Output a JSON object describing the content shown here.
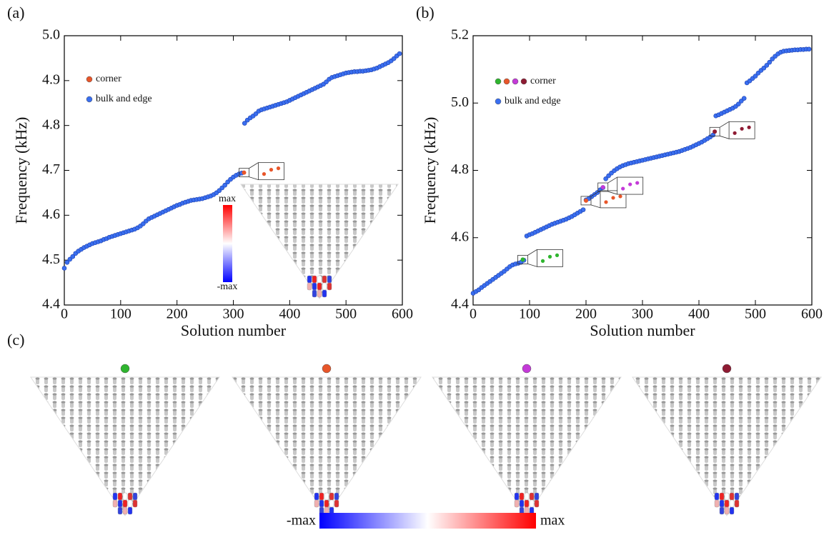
{
  "chart_data": [
    {
      "type": "scatter",
      "panel_label": "(a)",
      "xlabel": "Solution number",
      "ylabel": "Frequency (kHz)",
      "xlim": [
        0,
        600
      ],
      "xticks": [
        0,
        100,
        200,
        300,
        400,
        500,
        600
      ],
      "ylim": [
        4.4,
        5.0
      ],
      "yticks": [
        4.4,
        4.5,
        4.6,
        4.7,
        4.8,
        4.9,
        {
          "value": 5.0,
          "label": "5.0"
        }
      ],
      "colorbar": {
        "max_label": "max",
        "min_label": "-max"
      },
      "series": [
        {
          "name": "bulk and edge",
          "color": "#3a6ff0",
          "x": [
            0,
            5,
            10,
            15,
            20,
            25,
            30,
            35,
            40,
            45,
            50,
            55,
            60,
            65,
            70,
            75,
            80,
            85,
            90,
            95,
            100,
            105,
            110,
            115,
            120,
            125,
            130,
            135,
            140,
            145,
            150,
            155,
            160,
            165,
            170,
            175,
            180,
            185,
            190,
            195,
            200,
            205,
            210,
            215,
            220,
            225,
            230,
            235,
            240,
            245,
            250,
            255,
            260,
            265,
            270,
            275,
            280,
            285,
            290,
            295,
            300,
            305,
            310,
            315,
            320,
            325,
            330,
            335,
            340,
            345,
            350,
            355,
            360,
            365,
            370,
            375,
            380,
            385,
            390,
            395,
            400,
            405,
            410,
            415,
            420,
            425,
            430,
            435,
            440,
            445,
            450,
            455,
            460,
            465,
            470,
            475,
            480,
            485,
            490,
            495,
            500,
            505,
            510,
            515,
            520,
            525,
            530,
            535,
            540,
            545,
            550,
            555,
            560,
            565,
            570,
            575,
            580,
            585,
            590,
            595
          ],
          "values": [
            4.482,
            4.495,
            4.502,
            4.508,
            4.515,
            4.52,
            4.524,
            4.528,
            4.531,
            4.534,
            4.537,
            4.539,
            4.541,
            4.543,
            4.546,
            4.548,
            4.551,
            4.553,
            4.555,
            4.557,
            4.559,
            4.561,
            4.563,
            4.565,
            4.567,
            4.569,
            4.572,
            4.576,
            4.581,
            4.587,
            4.592,
            4.595,
            4.598,
            4.601,
            4.604,
            4.607,
            4.61,
            4.613,
            4.616,
            4.619,
            4.622,
            4.624,
            4.627,
            4.629,
            4.631,
            4.633,
            4.634,
            4.635,
            4.636,
            4.637,
            4.639,
            4.641,
            4.643,
            4.646,
            4.65,
            4.655,
            4.661,
            4.667,
            4.674,
            4.68,
            4.685,
            4.689,
            4.692,
            4.694,
            4.805,
            4.812,
            4.817,
            4.821,
            4.826,
            4.832,
            4.835,
            4.837,
            4.839,
            4.841,
            4.843,
            4.845,
            4.847,
            4.849,
            4.851,
            4.853,
            4.856,
            4.859,
            4.862,
            4.865,
            4.868,
            4.871,
            4.874,
            4.877,
            4.88,
            4.883,
            4.886,
            4.889,
            4.892,
            4.897,
            4.903,
            4.907,
            4.909,
            4.911,
            4.913,
            4.915,
            4.917,
            4.918,
            4.919,
            4.92,
            4.92,
            4.921,
            4.921,
            4.922,
            4.923,
            4.924,
            4.926,
            4.928,
            4.931,
            4.934,
            4.937,
            4.94,
            4.944,
            4.949,
            4.955,
            4.96
          ]
        },
        {
          "name": "corner",
          "colors": [
            "#e8562a"
          ],
          "x": [
            319
          ],
          "values": [
            4.695
          ]
        }
      ]
    },
    {
      "type": "scatter",
      "panel_label": "(b)",
      "xlabel": "Solution number",
      "ylabel": "Frequency (kHz)",
      "xlim": [
        0,
        600
      ],
      "xticks": [
        0,
        100,
        200,
        300,
        400,
        500,
        600
      ],
      "ylim": [
        4.4,
        5.2
      ],
      "yticks": [
        4.4,
        4.6,
        4.8,
        {
          "value": 5.0,
          "label": "5.0"
        },
        5.2
      ],
      "series": [
        {
          "name": "bulk and edge",
          "color": "#3a6ff0",
          "x": [
            0,
            5,
            10,
            15,
            20,
            25,
            30,
            35,
            40,
            45,
            50,
            55,
            60,
            65,
            70,
            75,
            80,
            85,
            90,
            95,
            100,
            105,
            110,
            115,
            120,
            125,
            130,
            135,
            140,
            145,
            150,
            155,
            160,
            165,
            170,
            175,
            180,
            185,
            190,
            195,
            200,
            205,
            210,
            215,
            220,
            225,
            230,
            235,
            240,
            245,
            250,
            255,
            260,
            265,
            270,
            275,
            280,
            285,
            290,
            295,
            300,
            305,
            310,
            315,
            320,
            325,
            330,
            335,
            340,
            345,
            350,
            355,
            360,
            365,
            370,
            375,
            380,
            385,
            390,
            395,
            400,
            405,
            410,
            415,
            420,
            425,
            430,
            435,
            440,
            445,
            450,
            455,
            460,
            465,
            470,
            475,
            480,
            485,
            490,
            495,
            500,
            505,
            510,
            515,
            520,
            525,
            530,
            535,
            540,
            545,
            550,
            555,
            560,
            565,
            570,
            575,
            580,
            585,
            590,
            595
          ],
          "values": [
            4.435,
            4.44,
            4.445,
            4.452,
            4.458,
            4.464,
            4.47,
            4.476,
            4.482,
            4.488,
            4.494,
            4.5,
            4.507,
            4.514,
            4.519,
            4.522,
            4.524,
            4.527,
            4.533,
            4.605,
            4.609,
            4.612,
            4.616,
            4.62,
            4.624,
            4.628,
            4.632,
            4.636,
            4.64,
            4.643,
            4.646,
            4.649,
            4.652,
            4.655,
            4.659,
            4.663,
            4.668,
            4.673,
            4.678,
            4.683,
            4.712,
            4.716,
            4.722,
            4.728,
            4.734,
            4.742,
            4.749,
            4.775,
            4.784,
            4.792,
            4.799,
            4.805,
            4.81,
            4.814,
            4.817,
            4.82,
            4.822,
            4.824,
            4.826,
            4.828,
            4.83,
            4.832,
            4.834,
            4.836,
            4.838,
            4.84,
            4.842,
            4.844,
            4.846,
            4.848,
            4.85,
            4.852,
            4.854,
            4.856,
            4.859,
            4.862,
            4.865,
            4.868,
            4.872,
            4.876,
            4.88,
            4.884,
            4.889,
            4.894,
            4.899,
            4.905,
            4.962,
            4.965,
            4.969,
            4.973,
            4.977,
            4.981,
            4.985,
            4.99,
            4.997,
            5.006,
            5.014,
            5.06,
            5.066,
            5.073,
            5.08,
            5.089,
            5.097,
            5.104,
            5.112,
            5.121,
            5.131,
            5.139,
            5.146,
            5.151,
            5.154,
            5.155,
            5.156,
            5.157,
            5.158,
            5.158,
            5.159,
            5.159,
            5.16,
            5.16
          ]
        },
        {
          "name": "corner",
          "colors": [
            "#2fb52f",
            "#e8562a",
            "#c43ad8",
            "#8e1b33"
          ],
          "x": [
            88,
            200,
            230,
            428
          ],
          "values": [
            4.535,
            4.71,
            4.75,
            4.915
          ]
        }
      ]
    }
  ],
  "panel_c": {
    "panel_label": "(c)",
    "colorbar": {
      "min_label": "-max",
      "max_label": "max"
    }
  }
}
